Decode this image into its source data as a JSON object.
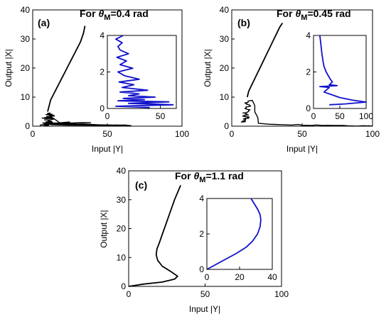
{
  "chart_data": [
    {
      "type": "line",
      "panel_label": "(a)",
      "annotation": {
        "prefix": "For ",
        "symbol": "θ",
        "subscript": "M",
        "suffix": "=0.4 rad"
      },
      "xlabel": "Input |Y|",
      "ylabel": "Output |X|",
      "xlim": [
        0,
        100
      ],
      "ylim": [
        0,
        40
      ],
      "xticks": [
        0,
        50,
        100
      ],
      "yticks": [
        0,
        10,
        20,
        30,
        40
      ],
      "series": [
        {
          "color": "#000000",
          "noisy": true,
          "x": [
            9,
            11,
            10,
            13,
            8,
            12,
            9,
            15,
            7,
            11,
            9,
            14,
            10,
            12,
            10,
            20,
            8,
            25,
            6,
            30,
            14,
            40,
            8,
            55,
            10,
            60,
            12,
            62,
            50,
            66,
            40
          ],
          "y": [
            0.3,
            0.6,
            0.9,
            1.2,
            1.5,
            1.8,
            2.1,
            2.4,
            2.7,
            3.0,
            3.3,
            3.6,
            3.9,
            4.2,
            4.5,
            0.8,
            1.1,
            1.4,
            0.5,
            1.0,
            0.6,
            1.3,
            0.7,
            0.4,
            0.9,
            0.3,
            0.5,
            0.4,
            0.2,
            0.3,
            0.1
          ]
        },
        {
          "color": "#000000",
          "x": [
            10,
            11,
            12,
            14,
            16,
            18,
            20,
            22,
            24,
            26,
            28,
            30,
            32,
            34,
            35
          ],
          "y": [
            5,
            7,
            9,
            11,
            13,
            15,
            17,
            19,
            21,
            23,
            25,
            27,
            29,
            32,
            34.5
          ]
        }
      ],
      "inset": {
        "xlim": [
          0,
          65
        ],
        "ylim": [
          0,
          4
        ],
        "xticks": [
          0,
          50
        ],
        "yticks": [
          0,
          2,
          4
        ],
        "series": [
          {
            "color": "#1010cc",
            "x": [
              15,
              8,
              14,
              10,
              12,
              20,
              9,
              18,
              12,
              24,
              10,
              16,
              30,
              11,
              25,
              14,
              38,
              12,
              30,
              20,
              45,
              15,
              35,
              10,
              58,
              20,
              62,
              8,
              40
            ],
            "y": [
              4.0,
              3.8,
              3.6,
              3.4,
              3.2,
              3.0,
              2.8,
              2.6,
              2.4,
              2.2,
              2.0,
              1.8,
              1.6,
              1.45,
              1.3,
              1.15,
              1.0,
              0.9,
              0.8,
              0.7,
              0.62,
              0.55,
              0.48,
              0.42,
              0.36,
              0.28,
              0.2,
              0.12,
              0.05
            ]
          }
        ]
      }
    },
    {
      "type": "line",
      "panel_label": "(b)",
      "annotation": {
        "prefix": "For ",
        "symbol": "θ",
        "subscript": "M",
        "suffix": "=0.45 rad"
      },
      "xlabel": "Input |Y|",
      "ylabel": "Output |X|",
      "xlim": [
        0,
        100
      ],
      "ylim": [
        0,
        40
      ],
      "xticks": [
        0,
        50,
        100
      ],
      "yticks": [
        0,
        10,
        20,
        30,
        40
      ],
      "series": [
        {
          "color": "#000000",
          "noisy": true,
          "x": [
            8,
            10,
            9,
            12,
            7,
            11,
            9,
            13,
            10,
            12,
            9,
            14,
            20,
            35,
            50,
            65,
            80,
            95,
            100
          ],
          "y": [
            1.5,
            2.0,
            2.5,
            3.0,
            3.5,
            4.0,
            4.5,
            5.0,
            6.0,
            7.0,
            8.0,
            9.0,
            0.9,
            0.6,
            0.45,
            0.35,
            0.25,
            0.15,
            0.1
          ]
        },
        {
          "color": "#000000",
          "x": [
            11,
            12,
            14,
            16,
            18,
            20,
            22,
            24,
            26,
            28,
            30,
            32,
            34,
            36
          ],
          "y": [
            10,
            12,
            14,
            16,
            18,
            20,
            22,
            24,
            26,
            28,
            30,
            32,
            34,
            35.5
          ]
        }
      ],
      "inset": {
        "xlim": [
          0,
          100
        ],
        "ylim": [
          0,
          4
        ],
        "xticks": [
          0,
          50,
          100
        ],
        "yticks": [
          0,
          2,
          4
        ],
        "series": [
          {
            "color": "#1010cc",
            "x": [
              12,
              14,
              16,
              18,
              20,
              24,
              28,
              32,
              36,
              30,
              45,
              12,
              30,
              20,
              50,
              75,
              100,
              60,
              30
            ],
            "y": [
              4.0,
              3.5,
              3.0,
              2.6,
              2.3,
              2.0,
              1.8,
              1.6,
              1.45,
              1.3,
              1.25,
              1.2,
              1.15,
              0.9,
              0.6,
              0.45,
              0.35,
              0.25,
              0.2
            ]
          }
        ]
      }
    },
    {
      "type": "line",
      "panel_label": "(c)",
      "annotation": {
        "prefix": "For ",
        "symbol": "θ",
        "subscript": "M",
        "suffix": "=1.1 rad"
      },
      "xlabel": "Input |Y|",
      "ylabel": "Output |X|",
      "xlim": [
        0,
        100
      ],
      "ylim": [
        0,
        40
      ],
      "xticks": [
        0,
        50,
        100
      ],
      "yticks": [
        0,
        10,
        20,
        30,
        40
      ],
      "series": [
        {
          "color": "#000000",
          "smooth": true,
          "x": [
            0,
            10,
            22,
            30,
            32,
            28,
            22,
            19,
            18,
            18.5,
            20,
            22,
            24,
            26,
            28,
            30,
            32,
            34
          ],
          "y": [
            0,
            0.8,
            1.5,
            2.5,
            3.5,
            5,
            7,
            9,
            11,
            13,
            15,
            18,
            21,
            24,
            27,
            30,
            32.5,
            35
          ]
        }
      ],
      "inset": {
        "xlim": [
          0,
          40
        ],
        "ylim": [
          0,
          4
        ],
        "xticks": [
          0,
          20,
          40
        ],
        "yticks": [
          0,
          2,
          4
        ],
        "series": [
          {
            "color": "#1010cc",
            "smooth": true,
            "x": [
              0,
              6,
              12,
              18,
              24,
              28,
              31,
              32.5,
              33,
              32.5,
              31,
              29,
              27
            ],
            "y": [
              0,
              0.3,
              0.6,
              0.9,
              1.25,
              1.6,
              2.0,
              2.4,
              2.8,
              3.1,
              3.4,
              3.7,
              4.0
            ]
          }
        ]
      }
    }
  ]
}
